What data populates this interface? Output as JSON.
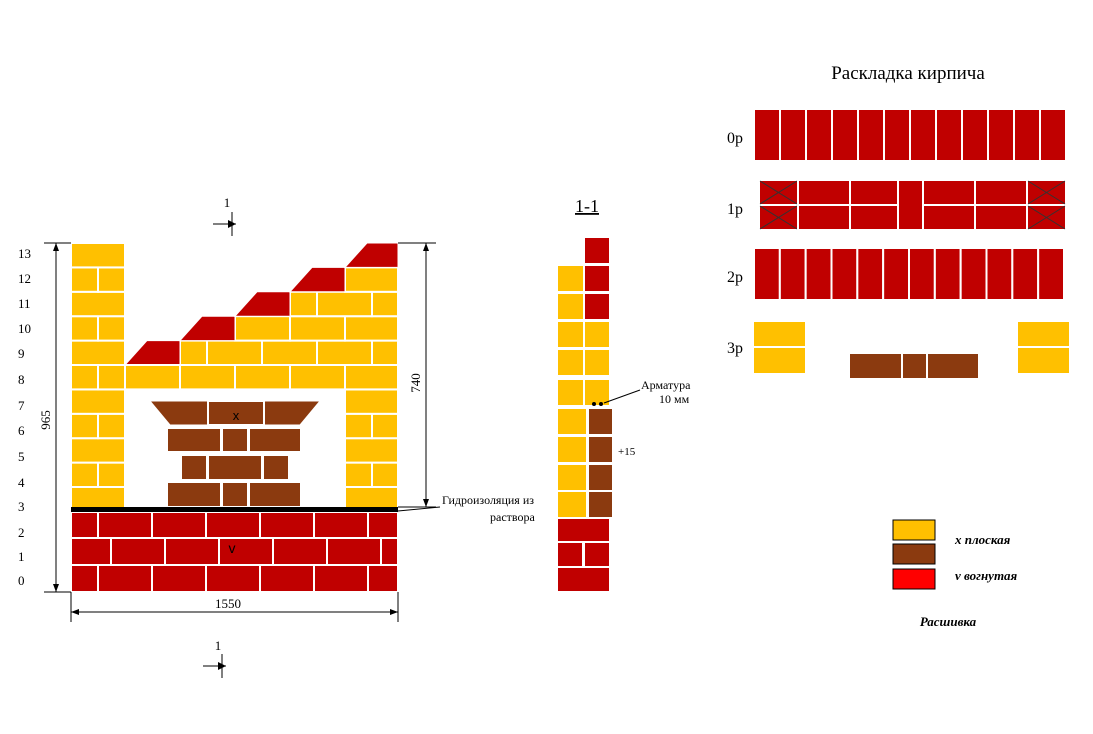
{
  "colors": {
    "yellow": "#FFC000",
    "brown": "#8B3A0F",
    "red": "#C00000",
    "bright_red": "#FF0000",
    "mortar": "#ffffff"
  },
  "elevation": {
    "row_numbers": [
      "0",
      "1",
      "2",
      "3",
      "4",
      "5",
      "6",
      "7",
      "8",
      "9",
      "10",
      "11",
      "12",
      "13"
    ],
    "dim_width": "1550",
    "dim_height_total": "965",
    "dim_height_upper": "740",
    "mark_x": "x",
    "mark_v": "v",
    "waterproofing_label_line1": "Гидроизоляция из",
    "waterproofing_label_line2": "раствора",
    "section_mark_top": "1",
    "section_mark_bottom": "1"
  },
  "section": {
    "title": "1-1",
    "rebar_label_line1": "Арматура",
    "rebar_label_line2": "10 мм",
    "offset_label": "+15"
  },
  "layout_plan": {
    "title": "Раскладка кирпича",
    "rows": [
      {
        "label": "0р"
      },
      {
        "label": "1р"
      },
      {
        "label": "2р"
      },
      {
        "label": "3р"
      }
    ]
  },
  "legend": {
    "items": [
      {
        "label": "х плоская",
        "color": "#FFC000"
      },
      {
        "label": "",
        "color": "#8B3A0F"
      },
      {
        "label": "v вогнутая",
        "color": "#FF0000"
      }
    ],
    "title": "Расшивка"
  }
}
